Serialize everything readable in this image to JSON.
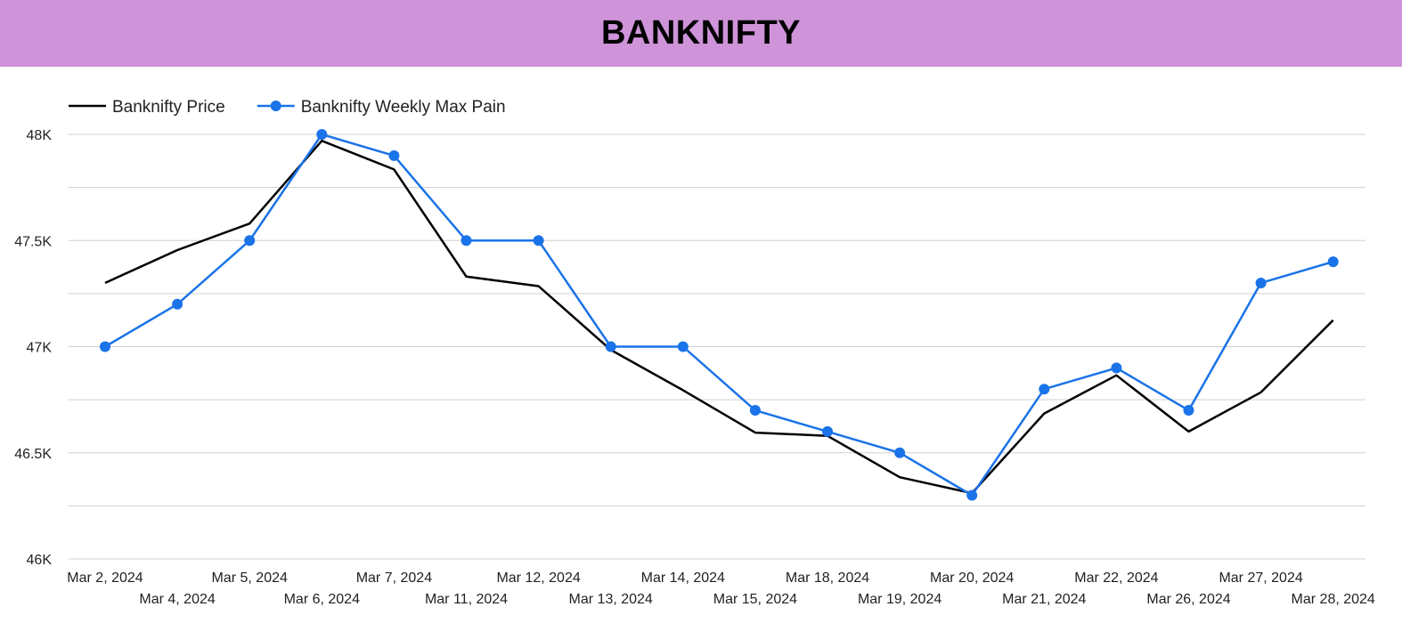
{
  "header": {
    "title": "BANKNIFTY",
    "background": "#ce93d8"
  },
  "chart_data": {
    "type": "line",
    "title": "BANKNIFTY",
    "categories": [
      "Mar 2, 2024",
      "Mar 4, 2024",
      "Mar 5, 2024",
      "Mar 6, 2024",
      "Mar 7, 2024",
      "Mar 11, 2024",
      "Mar 12, 2024",
      "Mar 13, 2024",
      "Mar 14, 2024",
      "Mar 15, 2024",
      "Mar 18, 2024",
      "Mar 19, 2024",
      "Mar 20, 2024",
      "Mar 21, 2024",
      "Mar 22, 2024",
      "Mar 26, 2024",
      "Mar 27, 2024",
      "Mar 28, 2024"
    ],
    "series": [
      {
        "name": "Banknifty Price",
        "color": "#000000",
        "markers": false,
        "values": [
          47300,
          47455,
          47580,
          47970,
          47835,
          47330,
          47285,
          46985,
          46795,
          46595,
          46580,
          46385,
          46310,
          46685,
          46865,
          46600,
          46785,
          47125
        ]
      },
      {
        "name": "Banknifty Weekly Max Pain",
        "color": "#1a73e8",
        "markers": true,
        "values": [
          47000,
          47200,
          47500,
          48000,
          47900,
          47500,
          47500,
          47000,
          47000,
          46700,
          46600,
          46500,
          46300,
          46800,
          46900,
          46700,
          47300,
          47400
        ]
      }
    ],
    "ylim": [
      46000,
      48000
    ],
    "yticks": [
      {
        "value": 46000,
        "label": "46K"
      },
      {
        "value": 46500,
        "label": "46.5K"
      },
      {
        "value": 47000,
        "label": "47K"
      },
      {
        "value": 47500,
        "label": "47.5K"
      },
      {
        "value": 48000,
        "label": "48K"
      }
    ],
    "minor_grid_step": 250,
    "grid": true,
    "legend": "top-left",
    "xlabel": "",
    "ylabel": ""
  }
}
